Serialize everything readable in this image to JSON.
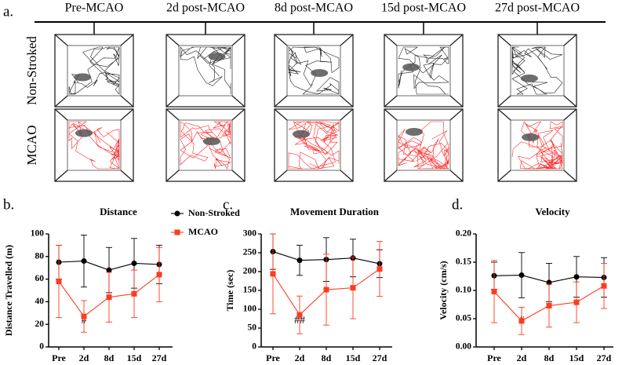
{
  "panel_a": {
    "letter": "a.",
    "columns": [
      "Pre-MCAO",
      "2d post-MCAO",
      "8d post-MCAO",
      "15d post-MCAO",
      "27d post-MCAO"
    ],
    "rows": [
      "Non-Stroked",
      "MCAO"
    ]
  },
  "chart_data": [
    {
      "type": "line",
      "letter": "b.",
      "title": "Distance",
      "y_label": "Distance Travelled (m)",
      "annotation": "#",
      "categories": [
        "Pre",
        "2d",
        "8d",
        "15d",
        "27d"
      ],
      "ylim": [
        0,
        100
      ],
      "yticks": [
        0,
        20,
        40,
        60,
        80,
        100
      ],
      "series": [
        {
          "name": "Non-Stroked",
          "color": "#000000",
          "marker": "circle",
          "values": [
            75,
            76,
            68,
            74,
            73
          ],
          "errors": [
            15,
            23,
            20,
            22,
            17
          ]
        },
        {
          "name": "MCAO",
          "color": "#ff3b1f",
          "marker": "square",
          "values": [
            58,
            27,
            44,
            47,
            64
          ],
          "errors": [
            32,
            14,
            22,
            21,
            24
          ]
        }
      ]
    },
    {
      "type": "line",
      "letter": "c.",
      "title": "Movement Duration",
      "y_label": "Time (sec)",
      "annotation": "##",
      "categories": [
        "Pre",
        "2d",
        "8d",
        "15d",
        "27d"
      ],
      "ylim": [
        0,
        300
      ],
      "yticks": [
        0,
        50,
        100,
        150,
        200,
        250,
        300
      ],
      "series": [
        {
          "color": "#000000",
          "marker": "circle",
          "values": [
            253,
            230,
            232,
            236,
            221
          ],
          "errors": [
            47,
            40,
            58,
            50,
            37
          ]
        },
        {
          "color": "#ff3b1f",
          "marker": "square",
          "values": [
            194,
            85,
            152,
            157,
            207
          ],
          "errors": [
            106,
            50,
            94,
            82,
            73
          ]
        }
      ]
    },
    {
      "type": "line",
      "letter": "d.",
      "title": "Velocity",
      "y_label": "Velocity (cm/s)",
      "annotation": "#",
      "categories": [
        "Pre",
        "2d",
        "8d",
        "15d",
        "27d"
      ],
      "ylim": [
        0,
        0.2
      ],
      "yticks": [
        {
          "value": 0,
          "label": "0.00"
        },
        {
          "value": 0.05,
          "label": "0.05"
        },
        {
          "value": 0.1,
          "label": "0.10"
        },
        {
          "value": 0.15,
          "label": "0.15"
        },
        {
          "value": 0.2,
          "label": "0.20"
        }
      ],
      "series": [
        {
          "color": "#000000",
          "marker": "circle",
          "values": [
            0.126,
            0.127,
            0.114,
            0.124,
            0.123
          ],
          "errors": [
            0.024,
            0.04,
            0.034,
            0.036,
            0.035
          ]
        },
        {
          "color": "#ff3b1f",
          "marker": "square",
          "values": [
            0.098,
            0.046,
            0.073,
            0.079,
            0.108
          ],
          "errors": [
            0.055,
            0.024,
            0.038,
            0.036,
            0.04
          ]
        }
      ]
    }
  ]
}
